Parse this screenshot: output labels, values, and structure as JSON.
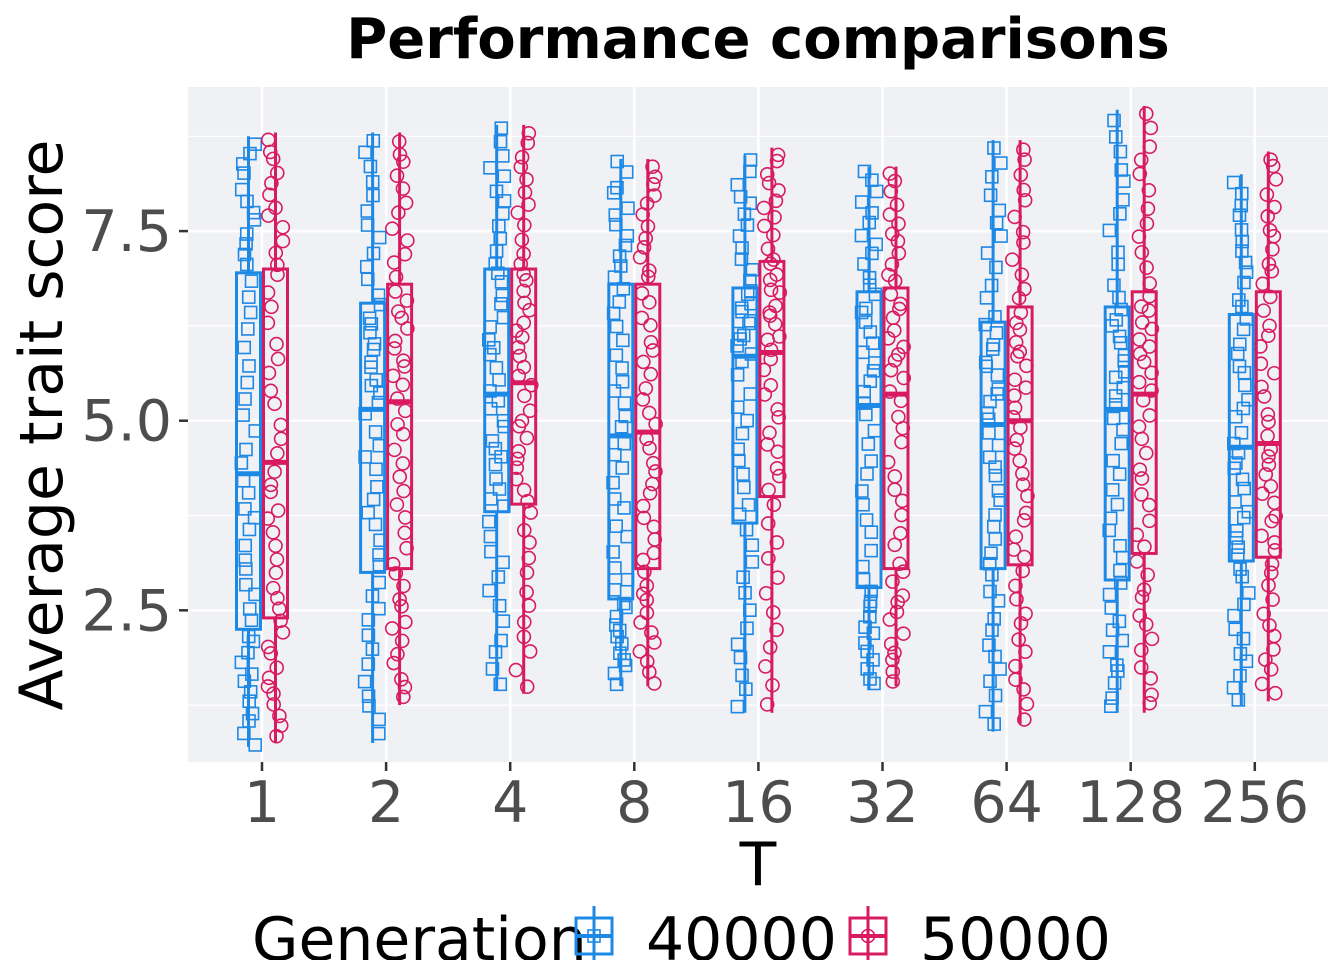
{
  "chart_data": {
    "type": "box",
    "title": "Performance comparisons",
    "xlabel": "T",
    "ylabel": "Average trait score",
    "categories": [
      "1",
      "2",
      "4",
      "8",
      "16",
      "32",
      "64",
      "128",
      "256"
    ],
    "y_ticks": [
      "2.5",
      "5.0",
      "7.5"
    ],
    "y_tick_values": [
      2.5,
      5.0,
      7.5
    ],
    "ylim": [
      0.5,
      9.4
    ],
    "grid": true,
    "legend": {
      "title": "Generation",
      "placement": "bottom",
      "entries": [
        "40000",
        "50000"
      ]
    },
    "colors": {
      "40000": "#1e88e5",
      "50000": "#d81b60",
      "panel": "#f0f1f5",
      "grid": "#ffffff"
    },
    "series": [
      {
        "name": "40000",
        "marker": "square",
        "boxes": [
          {
            "min": 0.7,
            "q1": 2.25,
            "median": 4.3,
            "q3": 6.95,
            "max": 8.75
          },
          {
            "min": 0.75,
            "q1": 3.0,
            "median": 5.15,
            "q3": 6.55,
            "max": 8.8
          },
          {
            "min": 1.45,
            "q1": 3.8,
            "median": 5.35,
            "q3": 7.0,
            "max": 8.9
          },
          {
            "min": 1.5,
            "q1": 2.65,
            "median": 4.8,
            "q3": 6.8,
            "max": 8.45
          },
          {
            "min": 1.15,
            "q1": 3.65,
            "median": 5.85,
            "q3": 6.75,
            "max": 8.5
          },
          {
            "min": 1.45,
            "q1": 2.8,
            "median": 5.2,
            "q3": 6.7,
            "max": 8.35
          },
          {
            "min": 0.9,
            "q1": 3.05,
            "median": 4.95,
            "q3": 6.3,
            "max": 8.7
          },
          {
            "min": 1.15,
            "q1": 2.9,
            "median": 5.15,
            "q3": 6.5,
            "max": 9.1
          },
          {
            "min": 1.25,
            "q1": 3.15,
            "median": 4.65,
            "q3": 6.4,
            "max": 8.25
          }
        ]
      },
      {
        "name": "50000",
        "marker": "circle",
        "boxes": [
          {
            "min": 0.75,
            "q1": 2.4,
            "median": 4.45,
            "q3": 7.0,
            "max": 8.8
          },
          {
            "min": 1.25,
            "q1": 3.05,
            "median": 5.25,
            "q3": 6.8,
            "max": 8.8
          },
          {
            "min": 1.4,
            "q1": 3.9,
            "median": 5.5,
            "q3": 7.0,
            "max": 8.9
          },
          {
            "min": 1.5,
            "q1": 3.05,
            "median": 4.85,
            "q3": 6.8,
            "max": 8.45
          },
          {
            "min": 1.15,
            "q1": 4.0,
            "median": 5.9,
            "q3": 7.1,
            "max": 8.6
          },
          {
            "min": 1.5,
            "q1": 3.05,
            "median": 5.35,
            "q3": 6.75,
            "max": 8.35
          },
          {
            "min": 1.0,
            "q1": 3.1,
            "median": 5.0,
            "q3": 6.5,
            "max": 8.7
          },
          {
            "min": 1.15,
            "q1": 3.25,
            "median": 5.35,
            "q3": 6.7,
            "max": 9.15
          },
          {
            "min": 1.3,
            "q1": 3.2,
            "median": 4.7,
            "q3": 6.7,
            "max": 8.55
          }
        ]
      }
    ]
  }
}
